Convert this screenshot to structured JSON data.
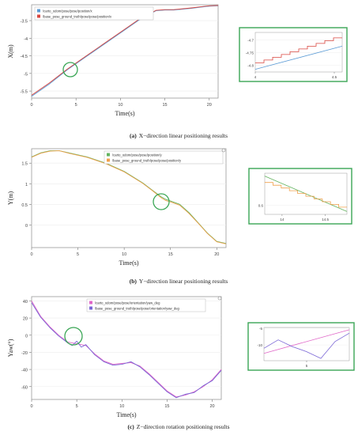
{
  "chart_data": [
    {
      "type": "line",
      "caption_label": "(a)",
      "caption_text": "X−direction linear positioning results",
      "xlabel": "Time(s)",
      "ylabel": "X(m)",
      "xlim": [
        0,
        21
      ],
      "ylim": [
        -5.7,
        -3.05
      ],
      "xticks": [
        "0",
        "5",
        "10",
        "15",
        "20"
      ],
      "yticks": [
        "-3.5",
        "-4",
        "-4.5",
        "-5",
        "-5.5"
      ],
      "ytick_values": [
        -3.5,
        -4,
        -4.5,
        -5,
        -5.5
      ],
      "ytick_top_label": "-3.5",
      "legend": [
        "/carto_odom/pose/pose/position/x",
        "/base_pose_ground_truth/pose/pose/position/x"
      ],
      "series": [
        {
          "name": "/carto_odom/pose/pose/position/x",
          "color": "#5b9bd5",
          "x": [
            0,
            2,
            4,
            6,
            8,
            10,
            12,
            14,
            15,
            16,
            18,
            20,
            21
          ],
          "y": [
            -5.65,
            -5.3,
            -4.9,
            -4.55,
            -4.2,
            -3.85,
            -3.5,
            -3.22,
            -3.2,
            -3.2,
            -3.15,
            -3.09,
            -3.08
          ]
        },
        {
          "name": "/base_pose_ground_truth/pose/pose/position/x",
          "color": "#d9463f",
          "x": [
            0,
            2,
            4,
            6,
            8,
            10,
            12,
            14,
            15,
            16,
            18,
            20,
            21
          ],
          "y": [
            -5.62,
            -5.27,
            -4.88,
            -4.53,
            -4.18,
            -3.83,
            -3.48,
            -3.21,
            -3.19,
            -3.19,
            -3.14,
            -3.08,
            -3.07
          ]
        }
      ],
      "inset": {
        "xticks": [
          "4",
          "4.5"
        ],
        "yticks": [
          "-4.7",
          "-4.75",
          "-4.8"
        ],
        "series": [
          {
            "color": "#5b9bd5",
            "x": [
              4,
              4.55
            ],
            "y": [
              -4.815,
              -4.725
            ]
          },
          {
            "color": "#d9463f",
            "x": [
              4,
              4.55
            ],
            "y": [
              -4.79,
              -4.682
            ],
            "step": true
          }
        ]
      }
    },
    {
      "type": "line",
      "caption_label": "(b)",
      "caption_text": "Y−direction linear positioning results",
      "xlabel": "Time(s)",
      "ylabel": "Y(m)",
      "xlim": [
        0,
        21
      ],
      "ylim": [
        -0.55,
        1.85
      ],
      "xticks": [
        "0",
        "5",
        "10",
        "15",
        "20"
      ],
      "yticks": [
        "1.5",
        "1",
        "0.5",
        "0"
      ],
      "ytick_values": [
        1.5,
        1,
        0.5,
        0
      ],
      "legend": [
        "/carto_odom/pose/pose/position/y",
        "/base_pose_ground_truth/pose/pose/position/y"
      ],
      "series": [
        {
          "name": "/carto_odom/pose/pose/position/y",
          "color": "#63b35f",
          "x": [
            0,
            1,
            2,
            3,
            4,
            6,
            8,
            10,
            12,
            13,
            14,
            14.5,
            15,
            16,
            17,
            18,
            19,
            20,
            21
          ],
          "y": [
            1.65,
            1.75,
            1.8,
            1.8,
            1.75,
            1.65,
            1.5,
            1.3,
            1.02,
            0.85,
            0.68,
            0.62,
            0.58,
            0.5,
            0.3,
            0.05,
            -0.2,
            -0.4,
            -0.45
          ]
        },
        {
          "name": "/base_pose_ground_truth/pose/pose/position/y",
          "color": "#f0a04b",
          "x": [
            0,
            1,
            2,
            3,
            4,
            6,
            8,
            10,
            12,
            13,
            14,
            14.5,
            15,
            16,
            17,
            18,
            19,
            20,
            21
          ],
          "y": [
            1.64,
            1.74,
            1.79,
            1.8,
            1.74,
            1.64,
            1.49,
            1.29,
            1.01,
            0.84,
            0.66,
            0.59,
            0.56,
            0.48,
            0.28,
            0.04,
            -0.21,
            -0.41,
            -0.46
          ]
        }
      ],
      "inset": {
        "xticks": [
          "14",
          "14.5"
        ],
        "yticks": [
          "0.7",
          "0.6"
        ],
        "series": [
          {
            "color": "#63b35f",
            "x": [
              13.8,
              14.75
            ],
            "y": [
              0.69,
              0.58
            ]
          },
          {
            "color": "#f0a04b",
            "x": [
              13.8,
              14.75
            ],
            "y": [
              0.67,
              0.585
            ],
            "step": true
          }
        ]
      }
    },
    {
      "type": "line",
      "caption_label": "(c)",
      "caption_text": "Z−direction rotation positioning results",
      "xlabel": "Time(s)",
      "ylabel": "Yaw(°)",
      "xlim": [
        0,
        21
      ],
      "ylim": [
        -75,
        45
      ],
      "xticks": [
        "0",
        "5",
        "10",
        "15",
        "20"
      ],
      "yticks": [
        "40",
        "20",
        "0",
        "-20",
        "-40",
        "-60"
      ],
      "ytick_values": [
        40,
        20,
        0,
        -20,
        -40,
        -60
      ],
      "legend": [
        "/carto_odom/pose/pose/orientation/yaw_deg",
        "/base_pose_ground_truth/pose/pose/orientation/yaw_deg"
      ],
      "series": [
        {
          "name": "/carto_odom/pose/pose/orientation/yaw_deg",
          "color": "#e066c8",
          "x": [
            0,
            1,
            2,
            3,
            4,
            5,
            6,
            7,
            8,
            9,
            10,
            11,
            12,
            13,
            14,
            15,
            16,
            17,
            18,
            19,
            20,
            21
          ],
          "y": [
            40,
            22,
            10,
            0,
            -8,
            -10,
            -12,
            -22,
            -30,
            -34,
            -33,
            -32,
            -36,
            -45,
            -55,
            -65,
            -72,
            -70,
            -66,
            -60,
            -52,
            -40
          ]
        },
        {
          "name": "/base_pose_ground_truth/pose/pose/orientation/yaw_deg",
          "color": "#7a66d6",
          "x": [
            0,
            1,
            2,
            3,
            4,
            4.5,
            5,
            5.5,
            6,
            7,
            8,
            9,
            10,
            11,
            12,
            13,
            14,
            15,
            16,
            17,
            18,
            19,
            20,
            21
          ],
          "y": [
            38,
            21,
            9,
            -1,
            -9,
            -12,
            -7,
            -14,
            -11,
            -23,
            -31,
            -35,
            -34,
            -31,
            -37,
            -46,
            -56,
            -66,
            -73,
            -69,
            -67,
            -59,
            -53,
            -41
          ]
        }
      ],
      "inset": {
        "xticks": [
          "5"
        ],
        "yticks": [
          "-5",
          "-10",
          "-15"
        ],
        "series": [
          {
            "color": "#e066c8",
            "x": [
              3.5,
              6.5
            ],
            "y": [
              -12.5,
              -5.5
            ]
          },
          {
            "color": "#7a66d6",
            "x": [
              3.5,
              4,
              4.5,
              5,
              5.5,
              6,
              6.5
            ],
            "y": [
              -11,
              -8.5,
              -10.5,
              -12,
              -14,
              -9,
              -6.5
            ]
          }
        ]
      }
    }
  ]
}
